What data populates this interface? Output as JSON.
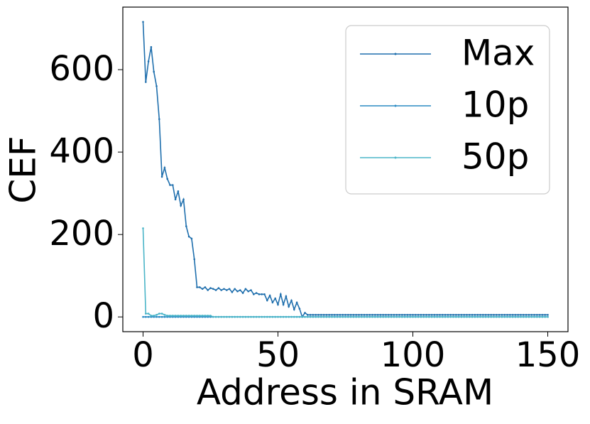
{
  "chart_data": {
    "type": "line",
    "xlabel": "Address in SRAM",
    "ylabel": "CEF",
    "x": [
      0,
      1,
      2,
      3,
      4,
      5,
      6,
      7,
      8,
      9,
      10,
      11,
      12,
      13,
      14,
      15,
      16,
      17,
      18,
      19,
      20,
      21,
      22,
      23,
      24,
      25,
      26,
      27,
      28,
      29,
      30,
      31,
      32,
      33,
      34,
      35,
      36,
      37,
      38,
      39,
      40,
      41,
      42,
      43,
      44,
      45,
      46,
      47,
      48,
      49,
      50,
      51,
      52,
      53,
      54,
      55,
      56,
      57,
      58,
      59,
      60,
      61,
      62,
      63,
      64,
      65,
      66,
      67,
      68,
      69,
      70,
      71,
      72,
      73,
      74,
      75,
      76,
      77,
      78,
      79,
      80,
      81,
      82,
      83,
      84,
      85,
      86,
      87,
      88,
      89,
      90,
      91,
      92,
      93,
      94,
      95,
      96,
      97,
      98,
      99,
      100,
      101,
      102,
      103,
      104,
      105,
      106,
      107,
      108,
      109,
      110,
      111,
      112,
      113,
      114,
      115,
      116,
      117,
      118,
      119,
      120,
      121,
      122,
      123,
      124,
      125,
      126,
      127,
      128,
      129,
      130,
      131,
      132,
      133,
      134,
      135,
      136,
      137,
      138,
      139,
      140,
      141,
      142,
      143,
      144,
      145,
      146,
      147,
      148,
      149,
      150
    ],
    "series": [
      {
        "name": "Max",
        "color": "#1f6fad",
        "values": [
          716,
          570,
          620,
          655,
          595,
          560,
          480,
          340,
          362,
          335,
          320,
          320,
          285,
          305,
          270,
          285,
          220,
          195,
          190,
          140,
          72,
          72,
          68,
          72,
          65,
          70,
          68,
          65,
          70,
          65,
          68,
          65,
          68,
          60,
          68,
          62,
          65,
          58,
          68,
          62,
          65,
          55,
          58,
          55,
          55,
          55,
          40,
          52,
          35,
          45,
          30,
          55,
          30,
          50,
          25,
          40,
          18,
          35,
          20,
          0,
          10,
          5,
          5,
          5,
          5,
          5,
          5,
          5,
          5,
          5,
          5,
          5,
          5,
          5,
          5,
          5,
          5,
          5,
          5,
          5,
          5,
          5,
          5,
          5,
          5,
          5,
          5,
          5,
          5,
          5,
          5,
          5,
          5,
          5,
          5,
          5,
          5,
          5,
          5,
          5,
          5,
          5,
          5,
          5,
          5,
          5,
          5,
          5,
          5,
          5,
          5,
          5,
          5,
          5,
          5,
          5,
          5,
          5,
          5,
          5,
          5,
          5,
          5,
          5,
          5,
          5,
          5,
          5,
          5,
          5,
          5,
          5,
          5,
          5,
          5,
          5,
          5,
          5,
          5,
          5,
          5,
          5,
          5,
          5,
          5,
          5,
          5,
          5,
          5,
          5,
          5
        ]
      },
      {
        "name": "10p",
        "color": "#2b8cc4",
        "values": [
          0,
          0,
          0,
          0,
          0,
          0,
          0,
          0,
          0,
          0,
          0,
          0,
          0,
          0,
          0,
          0,
          0,
          0,
          0,
          0,
          0,
          0,
          0,
          0,
          0,
          0,
          0,
          0,
          0,
          0,
          0,
          0,
          0,
          0,
          0,
          0,
          0,
          0,
          0,
          0,
          0,
          0,
          0,
          0,
          0,
          0,
          0,
          0,
          0,
          0,
          0,
          0,
          0,
          0,
          0,
          0,
          0,
          0,
          0,
          0,
          0,
          0,
          0,
          0,
          0,
          0,
          0,
          0,
          0,
          0,
          0,
          0,
          0,
          0,
          0,
          0,
          0,
          0,
          0,
          0,
          0,
          0,
          0,
          0,
          0,
          0,
          0,
          0,
          0,
          0,
          0,
          0,
          0,
          0,
          0,
          0,
          0,
          0,
          0,
          0,
          0,
          0,
          0,
          0,
          0,
          0,
          0,
          0,
          0,
          0,
          0,
          0,
          0,
          0,
          0,
          0,
          0,
          0,
          0,
          0,
          0,
          0,
          0,
          0,
          0,
          0,
          0,
          0,
          0,
          0,
          0,
          0,
          0,
          0,
          0,
          0,
          0,
          0,
          0,
          0,
          0,
          0,
          0,
          0,
          0,
          0,
          0,
          0,
          0,
          0,
          0
        ]
      },
      {
        "name": "50p",
        "color": "#4bb5c8",
        "values": [
          215,
          8,
          8,
          3,
          3,
          5,
          8,
          8,
          5,
          3,
          3,
          3,
          3,
          3,
          3,
          3,
          3,
          3,
          3,
          3,
          3,
          3,
          3,
          3,
          3,
          3,
          0,
          0,
          0,
          0,
          0,
          0,
          0,
          0,
          0,
          0,
          0,
          0,
          0,
          0,
          0,
          0,
          0,
          0,
          0,
          0,
          0,
          0,
          0,
          0,
          0,
          0,
          0,
          0,
          0,
          0,
          0,
          0,
          0,
          0,
          0,
          0,
          0,
          0,
          0,
          0,
          0,
          0,
          0,
          0,
          0,
          0,
          0,
          0,
          0,
          0,
          0,
          0,
          0,
          0,
          0,
          0,
          0,
          0,
          0,
          0,
          0,
          0,
          0,
          0,
          0,
          0,
          0,
          0,
          0,
          0,
          0,
          0,
          0,
          0,
          0,
          0,
          0,
          0,
          0,
          0,
          0,
          0,
          0,
          0,
          0,
          0,
          0,
          0,
          0,
          0,
          0,
          0,
          0,
          0,
          0,
          0,
          0,
          0,
          0,
          0,
          0,
          0,
          0,
          0,
          0,
          0,
          0,
          0,
          0,
          0,
          0,
          0,
          0,
          0,
          0,
          0,
          0,
          0,
          0,
          0,
          0,
          0,
          0,
          0,
          0
        ]
      }
    ],
    "xlim": [
      -7.5,
      157.5
    ],
    "ylim": [
      -35.8,
      751.8
    ],
    "xticks": [
      0,
      50,
      100,
      150
    ],
    "yticks": [
      0,
      200,
      400,
      600
    ],
    "legend": "upper right"
  }
}
